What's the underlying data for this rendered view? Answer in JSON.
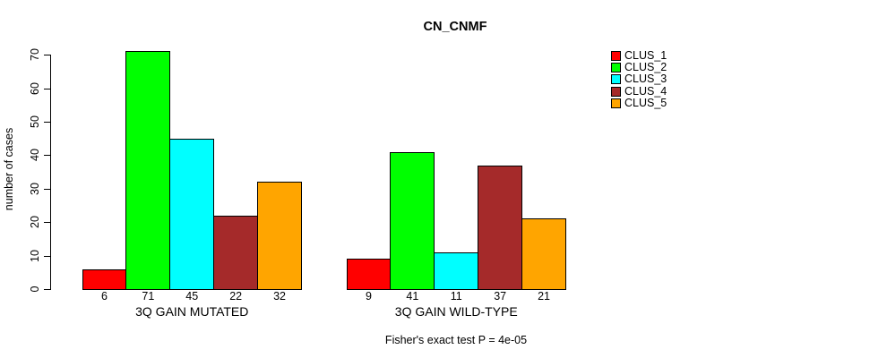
{
  "chart_data": {
    "type": "bar",
    "title": "CN_CNMF",
    "ylabel": "number of cases",
    "xlabel": "",
    "ylim": [
      0,
      70
    ],
    "yticks": [
      0,
      10,
      20,
      30,
      40,
      50,
      60,
      70
    ],
    "grid": false,
    "legend_position": "right-outside",
    "categories": [
      "3Q GAIN MUTATED",
      "3Q GAIN WILD-TYPE"
    ],
    "groups": [
      {
        "label": "3Q GAIN MUTATED",
        "values": [
          6,
          71,
          45,
          22,
          32
        ]
      },
      {
        "label": "3Q GAIN WILD-TYPE",
        "values": [
          9,
          41,
          11,
          37,
          21
        ]
      }
    ],
    "series": [
      {
        "name": "CLUS_1",
        "color": "#FF0000",
        "values": [
          6,
          9
        ]
      },
      {
        "name": "CLUS_2",
        "color": "#00FF00",
        "values": [
          71,
          41
        ]
      },
      {
        "name": "CLUS_3",
        "color": "#00FFFF",
        "values": [
          45,
          11
        ]
      },
      {
        "name": "CLUS_4",
        "color": "#A52A2A",
        "values": [
          22,
          37
        ]
      },
      {
        "name": "CLUS_5",
        "color": "#FFA500",
        "values": [
          32,
          21
        ]
      }
    ],
    "bar_value_labels_shown": true,
    "annotation": "Fisher's exact test P = 4e-05"
  }
}
